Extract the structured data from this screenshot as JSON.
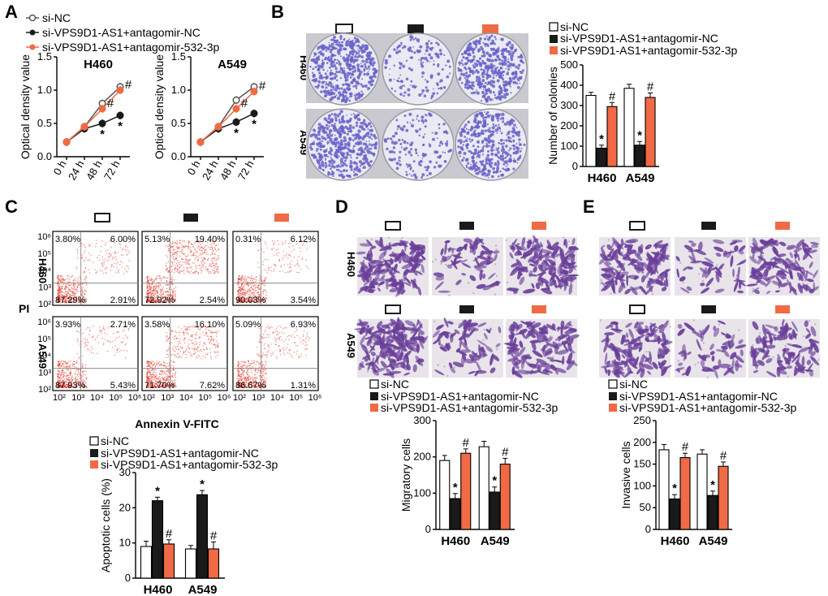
{
  "colors": {
    "white": "#ffffff",
    "black": "#1a1a1a",
    "orange": "#ef6a45",
    "dish": "#6a62c9",
    "stain": "#6a3f9a",
    "flow": "#e43b2d"
  },
  "legend": {
    "g1": "si-NC",
    "g2": "si-VPS9D1-AS1+antagomir-NC",
    "g3": "si-VPS9D1-AS1+antagomir-532-3p"
  },
  "panels": {
    "a": "A",
    "b": "B",
    "c": "C",
    "d": "D",
    "e": "E"
  },
  "cells": {
    "h460": "H460",
    "a549": "A549"
  },
  "panel_b": {
    "ylabel": "Number of colonies"
  },
  "panel_c": {
    "ylabel": "PI",
    "xlabel": "Annexin V-FITC",
    "xticks": [
      "10²",
      "10³",
      "10⁴",
      "10⁵",
      "10⁶"
    ],
    "yticks": [
      "10²",
      "10³",
      "10⁴",
      "10⁵",
      "10⁶"
    ],
    "quadrants": [
      [
        "3.80%",
        "6.00%",
        "87.29%",
        "2.91%"
      ],
      [
        "5.13%",
        "19.40%",
        "72.92%",
        "2.54%"
      ],
      [
        "0.31%",
        "6.12%",
        "90.03%",
        "3.54%"
      ],
      [
        "3.93%",
        "2.71%",
        "87.93%",
        "5.43%"
      ],
      [
        "3.58%",
        "16.10%",
        "71.70%",
        "7.62%"
      ],
      [
        "5.09%",
        "6.93%",
        "86.67%",
        "1.31%"
      ]
    ]
  },
  "chart_data": [
    {
      "id": "A1",
      "type": "line",
      "title": "H460",
      "ylabel": "Optical density value",
      "x": [
        "0 h",
        "24 h",
        "48 h",
        "72 h"
      ],
      "ylim": [
        0,
        1.5
      ],
      "yticks": [
        0,
        0.5,
        1.0,
        1.5
      ],
      "series": [
        {
          "name": "si-NC",
          "values": [
            0.22,
            0.45,
            0.8,
            1.05
          ]
        },
        {
          "name": "si-VPS9D1-AS1+antagomir-NC",
          "values": [
            0.22,
            0.42,
            0.5,
            0.62
          ]
        },
        {
          "name": "si-VPS9D1-AS1+antagomir-532-3p",
          "values": [
            0.22,
            0.45,
            0.72,
            1.0
          ]
        }
      ],
      "annotations": {
        "si-VPS9D1-AS1+antagomir-NC": [
          "",
          "",
          "*",
          "*"
        ],
        "si-VPS9D1-AS1+antagomir-532-3p": [
          "",
          "",
          "#",
          "#"
        ]
      }
    },
    {
      "id": "A2",
      "type": "line",
      "title": "A549",
      "ylabel": "Optical density value",
      "x": [
        "0 h",
        "24 h",
        "48 h",
        "72 h"
      ],
      "ylim": [
        0,
        1.5
      ],
      "yticks": [
        0,
        0.5,
        1.0,
        1.5
      ],
      "series": [
        {
          "name": "si-NC",
          "values": [
            0.22,
            0.45,
            0.85,
            1.05
          ]
        },
        {
          "name": "si-VPS9D1-AS1+antagomir-NC",
          "values": [
            0.22,
            0.42,
            0.52,
            0.65
          ]
        },
        {
          "name": "si-VPS9D1-AS1+antagomir-532-3p",
          "values": [
            0.22,
            0.45,
            0.72,
            0.98
          ]
        }
      ],
      "annotations": {
        "si-VPS9D1-AS1+antagomir-NC": [
          "",
          "",
          "*",
          "*"
        ],
        "si-VPS9D1-AS1+antagomir-532-3p": [
          "",
          "",
          "#",
          "#"
        ]
      }
    },
    {
      "id": "B",
      "type": "bar",
      "ylabel": "Number of colonies",
      "categories": [
        "H460",
        "A549"
      ],
      "ylim": [
        0,
        500
      ],
      "yticks": [
        0,
        100,
        200,
        300,
        400,
        500
      ],
      "series": [
        {
          "name": "si-NC",
          "values": [
            350,
            385
          ]
        },
        {
          "name": "si-VPS9D1-AS1+antagomir-NC",
          "values": [
            90,
            105
          ]
        },
        {
          "name": "si-VPS9D1-AS1+antagomir-532-3p",
          "values": [
            295,
            340
          ]
        }
      ],
      "errors": [
        [
          15,
          20
        ],
        [
          15,
          18
        ],
        [
          20,
          22
        ]
      ],
      "annotations": [
        [
          "",
          ""
        ],
        [
          "*",
          "*"
        ],
        [
          "#",
          "#"
        ]
      ]
    },
    {
      "id": "C",
      "type": "bar",
      "ylabel": "Apoptotic cells (%)",
      "categories": [
        "H460",
        "A549"
      ],
      "ylim": [
        0,
        30
      ],
      "yticks": [
        0,
        10,
        20,
        30
      ],
      "series": [
        {
          "name": "si-NC",
          "values": [
            9,
            8.3
          ]
        },
        {
          "name": "si-VPS9D1-AS1+antagomir-NC",
          "values": [
            22,
            23.7
          ]
        },
        {
          "name": "si-VPS9D1-AS1+antagomir-532-3p",
          "values": [
            9.7,
            8.3
          ]
        }
      ],
      "errors": [
        [
          1.5,
          1
        ],
        [
          1,
          1.2
        ],
        [
          1.2,
          2
        ]
      ],
      "annotations": [
        [
          "",
          ""
        ],
        [
          "*",
          "*"
        ],
        [
          "#",
          "#"
        ]
      ]
    },
    {
      "id": "D",
      "type": "bar",
      "ylabel": "Migratory cells",
      "categories": [
        "H460",
        "A549"
      ],
      "ylim": [
        0,
        300
      ],
      "yticks": [
        0,
        100,
        200,
        300
      ],
      "series": [
        {
          "name": "si-NC",
          "values": [
            190,
            228
          ]
        },
        {
          "name": "si-VPS9D1-AS1+antagomir-NC",
          "values": [
            85,
            103
          ]
        },
        {
          "name": "si-VPS9D1-AS1+antagomir-532-3p",
          "values": [
            210,
            180
          ]
        }
      ],
      "errors": [
        [
          14,
          15
        ],
        [
          14,
          14
        ],
        [
          12,
          16
        ]
      ],
      "annotations": [
        [
          "",
          ""
        ],
        [
          "*",
          "*"
        ],
        [
          "#",
          "#"
        ]
      ]
    },
    {
      "id": "E",
      "type": "bar",
      "ylabel": "Invasive cells",
      "categories": [
        "H460",
        "A549"
      ],
      "ylim": [
        0,
        250
      ],
      "yticks": [
        0,
        50,
        100,
        150,
        200,
        250
      ],
      "series": [
        {
          "name": "si-NC",
          "values": [
            183,
            173
          ]
        },
        {
          "name": "si-VPS9D1-AS1+antagomir-NC",
          "values": [
            70,
            78
          ]
        },
        {
          "name": "si-VPS9D1-AS1+antagomir-532-3p",
          "values": [
            165,
            145
          ]
        }
      ],
      "errors": [
        [
          12,
          10
        ],
        [
          10,
          10
        ],
        [
          10,
          10
        ]
      ],
      "annotations": [
        [
          "",
          ""
        ],
        [
          "*",
          "*"
        ],
        [
          "#",
          "#"
        ]
      ]
    }
  ]
}
